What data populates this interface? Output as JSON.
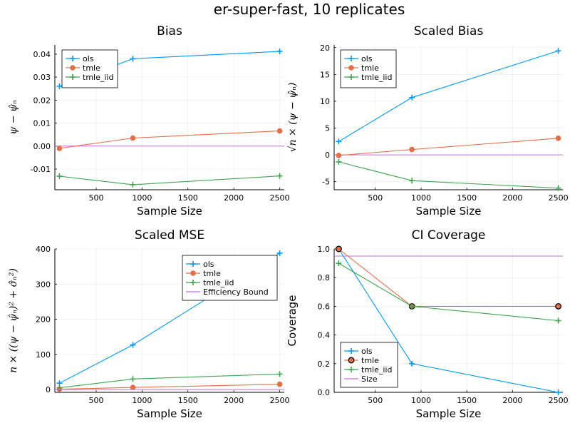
{
  "suptitle": "er-super-fast, 10 replicates",
  "colors": {
    "ols": "#009af9",
    "tmle": "#e26f46",
    "tmle_iid": "#3ea44e",
    "ref": "#c271d2"
  },
  "chart_data": [
    {
      "type": "line",
      "title": "Bias",
      "xlabel": "Sample Size",
      "ylabel": "ψ − ψ̂ₙ",
      "xlim": [
        50,
        2550
      ],
      "ylim": [
        -0.019,
        0.044
      ],
      "xticks": [
        500,
        1000,
        1500,
        2000,
        2500
      ],
      "yticks": [
        -0.01,
        0.0,
        0.01,
        0.02,
        0.03,
        0.04
      ],
      "ytick_labels": [
        "-0.01",
        "0.00",
        "0.01",
        "0.02",
        "0.03",
        "0.04"
      ],
      "grid": true,
      "legend_position": "top-left",
      "x": [
        100,
        900,
        2500
      ],
      "series": [
        {
          "name": "ols",
          "marker": "plus",
          "values": [
            0.026,
            0.038,
            0.0412
          ]
        },
        {
          "name": "tmle",
          "marker": "circle",
          "values": [
            -0.001,
            0.0035,
            0.0066
          ]
        },
        {
          "name": "tmle_iid",
          "marker": "plus",
          "values": [
            -0.0131,
            -0.0168,
            -0.013
          ]
        }
      ],
      "hlines": [
        {
          "y": 0.0,
          "color_key": "ref"
        }
      ]
    },
    {
      "type": "line",
      "title": "Scaled Bias",
      "xlabel": "Sample Size",
      "ylabel": "√n × (ψ − ψ̂ₙ)",
      "xlim": [
        50,
        2550
      ],
      "ylim": [
        -6.5,
        20.5
      ],
      "xticks": [
        500,
        1000,
        1500,
        2000,
        2500
      ],
      "yticks": [
        -5,
        0,
        5,
        10,
        15,
        20
      ],
      "ytick_labels": [
        "-5",
        "0",
        "5",
        "10",
        "15",
        "20"
      ],
      "grid": true,
      "legend_position": "top-left",
      "x": [
        100,
        900,
        2500
      ],
      "series": [
        {
          "name": "ols",
          "marker": "plus",
          "values": [
            2.5,
            10.7,
            19.4
          ]
        },
        {
          "name": "tmle",
          "marker": "circle",
          "values": [
            -0.1,
            1.0,
            3.1
          ]
        },
        {
          "name": "tmle_iid",
          "marker": "plus",
          "values": [
            -1.3,
            -4.8,
            -6.2
          ]
        }
      ],
      "hlines": [
        {
          "y": 0,
          "color_key": "ref"
        }
      ]
    },
    {
      "type": "line",
      "title": "Scaled MSE",
      "xlabel": "Sample Size",
      "ylabel": "n × ((ψ − ψ̂ₙ)² + σ̂ₙ²)",
      "xlim": [
        50,
        2550
      ],
      "ylim": [
        -8,
        400
      ],
      "xticks": [
        500,
        1000,
        1500,
        2000,
        2500
      ],
      "yticks": [
        0,
        100,
        200,
        300,
        400
      ],
      "ytick_labels": [
        "0",
        "100",
        "200",
        "300",
        "400"
      ],
      "grid": true,
      "legend_position": "top-right",
      "x": [
        100,
        900,
        2500
      ],
      "series": [
        {
          "name": "ols",
          "marker": "plus",
          "values": [
            18,
            127,
            388
          ]
        },
        {
          "name": "tmle",
          "marker": "circle",
          "values": [
            1,
            6,
            15
          ]
        },
        {
          "name": "tmle_iid",
          "marker": "plus",
          "values": [
            5,
            30,
            44
          ]
        },
        {
          "name": "Efficiency Bound",
          "marker": "none",
          "values": [
            0,
            0,
            0
          ]
        }
      ],
      "hlines": []
    },
    {
      "type": "line",
      "title": "CI Coverage",
      "xlabel": "Sample Size",
      "ylabel": "Coverage",
      "xlim": [
        50,
        2550
      ],
      "ylim": [
        0,
        1
      ],
      "xticks": [
        500,
        1000,
        1500,
        2000,
        2500
      ],
      "yticks": [
        0,
        0.2,
        0.4,
        0.6,
        0.8,
        1.0
      ],
      "ytick_labels": [
        "0.0",
        "0.2",
        "0.4",
        "0.6",
        "0.8",
        "1.0"
      ],
      "grid": true,
      "legend_position": "bottom-left",
      "x": [
        100,
        900,
        2500
      ],
      "series": [
        {
          "name": "ols",
          "marker": "plus",
          "values": [
            1.0,
            0.2,
            0.0
          ]
        },
        {
          "name": "tmle",
          "marker": "circle-dark",
          "values": [
            1.0,
            0.6,
            0.6
          ]
        },
        {
          "name": "tmle_iid",
          "marker": "plus",
          "values": [
            0.9,
            0.6,
            0.5
          ]
        },
        {
          "name": "Size",
          "marker": "none",
          "values": [
            0.95,
            0.95,
            0.95
          ]
        }
      ],
      "hlines": []
    }
  ]
}
